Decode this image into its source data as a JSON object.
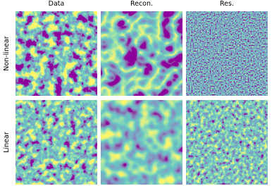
{
  "columns": [
    "Data",
    "Recon.",
    "Res."
  ],
  "rows": [
    "Non-linear",
    "Linear"
  ]
}
